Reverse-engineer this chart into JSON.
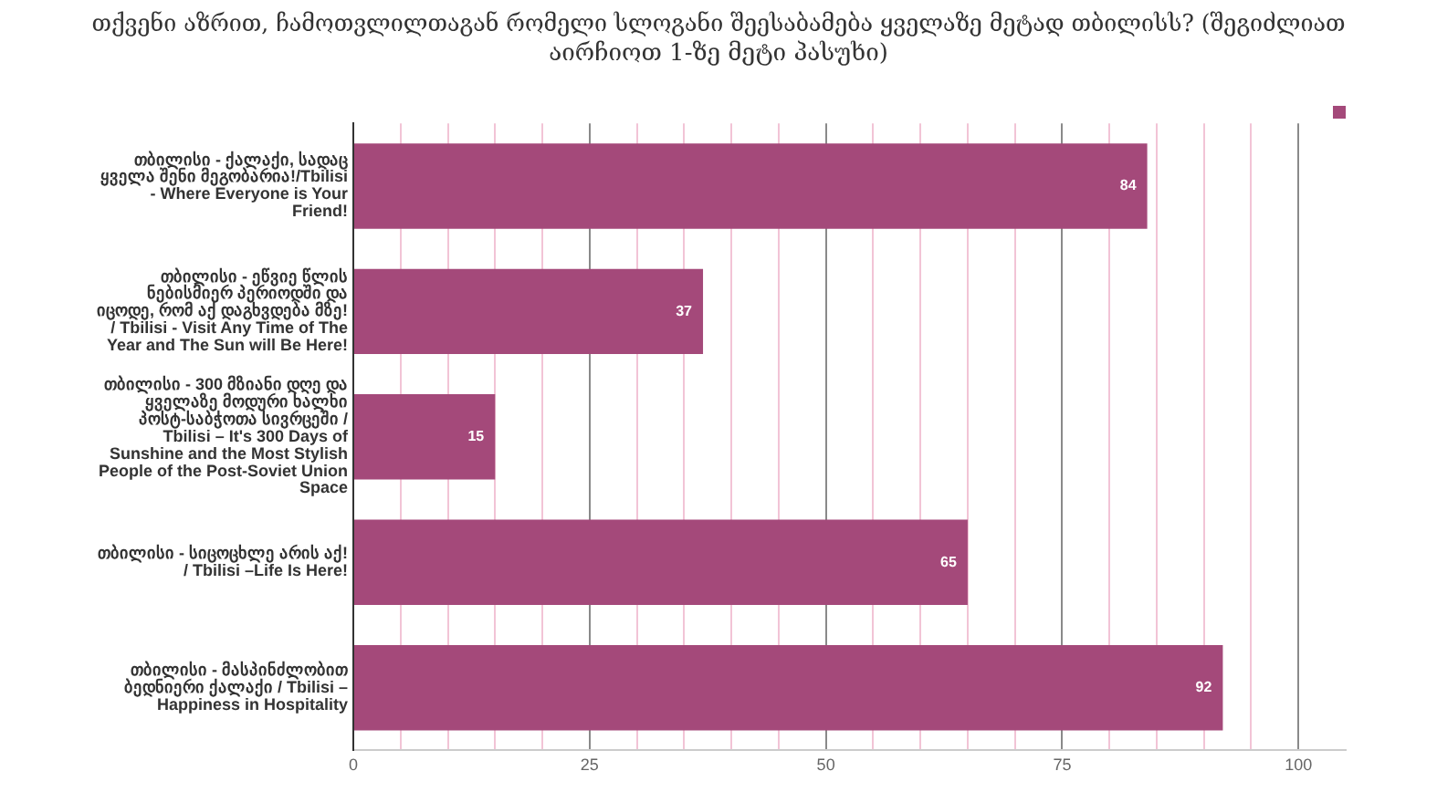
{
  "chart_data": {
    "type": "bar",
    "orientation": "horizontal",
    "title": "თქვენი აზრით, ჩამოთვლილთაგან რომელი სლოგანი შეესაბამება ყველაზე მეტად თბილისს? (შეგიძლიათ აირჩიოთ 1-ზე მეტი პასუხი)",
    "categories": [
      "თბილისი - ქალაქი, სადაც ყველა შენი მეგობარია!/Tbilisi - Where Everyone is Your Friend!",
      "თბილისი - ეწვიე წლის ნებისმიერ პერიოდში და იცოდე, რომ აქ დაგხვდება მზე! / Tbilisi - Visit Any Time of The Year and The Sun will Be Here!",
      "თბილისი - 300 მზიანი დღე და ყველაზე მოდური ხალხი პოსტ-საბჭოთა სივრცეში / Tbilisi – It's 300 Days of Sunshine and the Most Stylish People of the Post-Soviet Union Space",
      "თბილისი - სიცოცხლე არის აქ! / Tbilisi –Life Is Here!",
      "თბილისი - მასპინძლობით ბედნიერი ქალაქი / Tbilisi – Happiness in Hospitality"
    ],
    "series": [
      {
        "color": "#a4497a",
        "values": [
          84,
          37,
          15,
          65,
          92
        ]
      }
    ],
    "xlim": [
      0,
      105
    ],
    "xticks": [
      0,
      {
        "value": 5,
        "label": null
      },
      {
        "value": 10,
        "label": null
      },
      {
        "value": 15,
        "label": null
      },
      {
        "value": 20,
        "label": null
      },
      25,
      {
        "value": 30,
        "label": null
      },
      {
        "value": 35,
        "label": null
      },
      {
        "value": 40,
        "label": null
      },
      {
        "value": 45,
        "label": null
      },
      50,
      {
        "value": 55,
        "label": null
      },
      {
        "value": 60,
        "label": null
      },
      {
        "value": 65,
        "label": null
      },
      {
        "value": 70,
        "label": null
      },
      75,
      {
        "value": 80,
        "label": null
      },
      {
        "value": 85,
        "label": null
      },
      {
        "value": 90,
        "label": null
      },
      {
        "value": 95,
        "label": null
      },
      100
    ],
    "grid": "x",
    "data_labels": true
  }
}
